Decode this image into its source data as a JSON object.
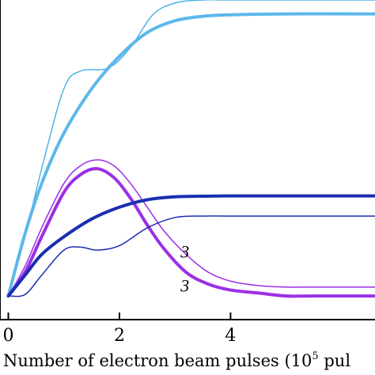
{
  "chart_data": {
    "type": "line",
    "xlabel": "Number of electron beam pulses (10",
    "xlabel_sup": "5",
    "xlabel_tail": " pul",
    "ylabel": "",
    "title": "",
    "xlim": [
      -0.15,
      6.6
    ],
    "ylim": [
      -0.08,
      1.0
    ],
    "x_ticks": [
      0,
      2,
      4
    ],
    "x_tick_labels": [
      "0",
      "2",
      "4"
    ],
    "grid": false,
    "legend": "none",
    "annotations": [
      {
        "text": "3",
        "x": 3.1,
        "y": 0.13
      },
      {
        "text": "3",
        "x": 3.1,
        "y": 0.015
      }
    ],
    "series": [
      {
        "color": "#4fb3e6",
        "width": 1.5,
        "x": [
          0,
          0.3,
          0.6,
          1.0,
          1.3,
          1.8,
          2.2,
          2.6,
          3.0,
          3.5,
          4.0,
          5.0,
          6.6
        ],
        "y": [
          0.0,
          0.2,
          0.43,
          0.7,
          0.76,
          0.77,
          0.84,
          0.95,
          0.99,
          1.0,
          1.0,
          1.0,
          1.0
        ]
      },
      {
        "color": "#5cb8ea",
        "width": 4,
        "x": [
          0,
          0.3,
          0.6,
          1.0,
          1.5,
          2.0,
          2.5,
          3.0,
          3.5,
          4.0,
          5.0,
          6.6
        ],
        "y": [
          0.0,
          0.21,
          0.38,
          0.55,
          0.7,
          0.81,
          0.89,
          0.93,
          0.945,
          0.95,
          0.953,
          0.953
        ]
      },
      {
        "color": "#9b2fe6",
        "width": 1.5,
        "x": [
          0,
          0.3,
          0.6,
          1.0,
          1.3,
          1.6,
          1.9,
          2.2,
          2.5,
          2.8,
          3.2,
          3.6,
          4.0,
          4.5,
          5.0,
          5.5,
          6.6
        ],
        "y": [
          0.0,
          0.1,
          0.23,
          0.38,
          0.44,
          0.46,
          0.44,
          0.38,
          0.3,
          0.22,
          0.14,
          0.08,
          0.05,
          0.035,
          0.03,
          0.03,
          0.03
        ]
      },
      {
        "color": "#9b2fe6",
        "width": 4,
        "x": [
          0,
          0.3,
          0.6,
          1.0,
          1.3,
          1.6,
          1.9,
          2.2,
          2.5,
          2.8,
          3.2,
          3.6,
          4.0,
          4.5,
          5.0,
          5.5,
          6.6
        ],
        "y": [
          0.0,
          0.08,
          0.2,
          0.35,
          0.41,
          0.43,
          0.4,
          0.33,
          0.24,
          0.16,
          0.08,
          0.04,
          0.02,
          0.01,
          0.0,
          0.0,
          0.0
        ]
      },
      {
        "color": "#1a2fb0",
        "width": 4,
        "x": [
          0,
          0.3,
          0.6,
          1.0,
          1.5,
          2.0,
          2.5,
          3.0,
          3.5,
          4.0,
          5.0,
          6.6
        ],
        "y": [
          0.0,
          0.07,
          0.14,
          0.2,
          0.26,
          0.3,
          0.325,
          0.335,
          0.337,
          0.338,
          0.338,
          0.338
        ]
      },
      {
        "color": "#1a2fb0",
        "width": 1.5,
        "x": [
          0,
          0.3,
          0.6,
          1.0,
          1.3,
          1.6,
          2.0,
          2.5,
          3.0,
          3.5,
          4.0,
          5.0,
          6.6
        ],
        "y": [
          0.0,
          0.005,
          0.07,
          0.155,
          0.165,
          0.155,
          0.17,
          0.23,
          0.265,
          0.27,
          0.27,
          0.27,
          0.27
        ]
      }
    ]
  }
}
